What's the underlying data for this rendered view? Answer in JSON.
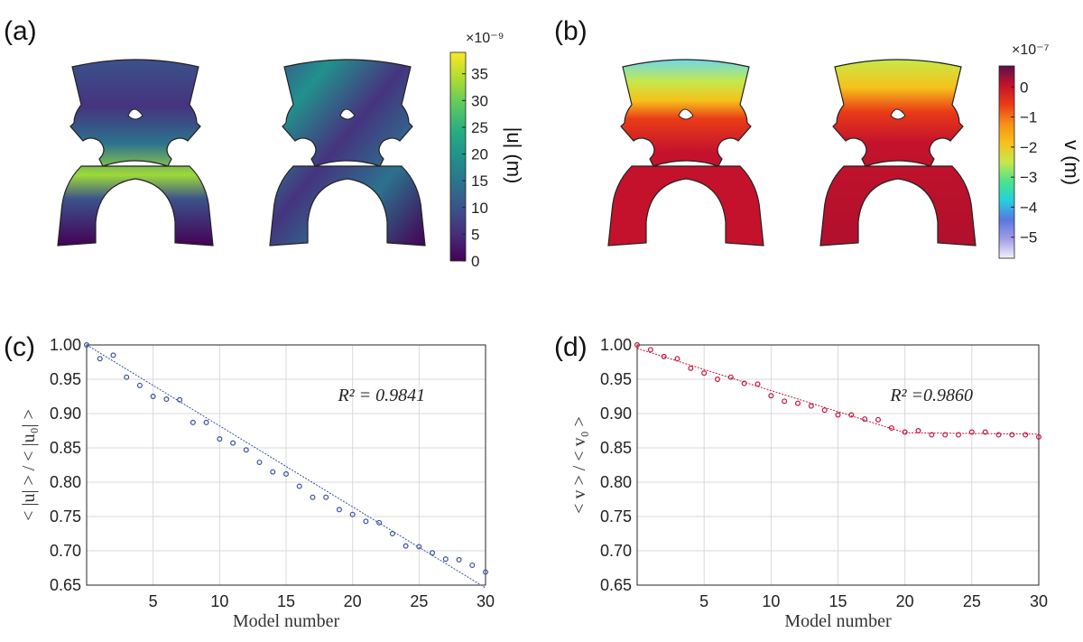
{
  "panels": {
    "a": {
      "label": "(a)",
      "colorbar": {
        "title": "|u| (m)",
        "exponent": "×10⁻⁹",
        "ticks": [
          "0",
          "5",
          "10",
          "15",
          "20",
          "25",
          "30",
          "35"
        ],
        "min": 0,
        "max": 39,
        "colormap": [
          "#440154",
          "#472d7b",
          "#3b528b",
          "#2c728e",
          "#21918c",
          "#28ae80",
          "#5ec962",
          "#addc30",
          "#fde725"
        ]
      }
    },
    "b": {
      "label": "(b)",
      "colorbar": {
        "title": "v (m)",
        "exponent": "×10⁻⁷",
        "ticks": [
          "0",
          "−1",
          "−2",
          "−3",
          "−4",
          "−5"
        ],
        "min": -5.7,
        "max": 0.7,
        "colormap": [
          "#f4f0fb",
          "#a29de6",
          "#5a77e0",
          "#23d0de",
          "#4ee28a",
          "#c6e84a",
          "#f6c21a",
          "#f78e18",
          "#ea3b17",
          "#c4122c",
          "#5c0f4d"
        ]
      }
    },
    "c": {
      "label": "(c)"
    },
    "d": {
      "label": "(d)"
    }
  },
  "chart_data": [
    {
      "id": "c",
      "type": "scatter",
      "title": "",
      "xlabel": "Model number",
      "ylabel": "< |u| > / < |u₀| >",
      "xlim": [
        0,
        30
      ],
      "ylim": [
        0.65,
        1.0
      ],
      "xticks": [
        5,
        10,
        15,
        20,
        25,
        30
      ],
      "yticks": [
        0.65,
        0.7,
        0.75,
        0.8,
        0.85,
        0.9,
        0.95,
        1.0
      ],
      "grid": true,
      "color": "#3a4f9e",
      "annotation": "R² = 0.9841",
      "x": [
        0,
        1,
        2,
        3,
        4,
        5,
        6,
        7,
        8,
        9,
        10,
        11,
        12,
        13,
        14,
        15,
        16,
        17,
        18,
        19,
        20,
        21,
        22,
        23,
        24,
        25,
        26,
        27,
        28,
        29,
        30
      ],
      "y": [
        1.0,
        0.98,
        0.985,
        0.953,
        0.941,
        0.925,
        0.921,
        0.92,
        0.887,
        0.887,
        0.863,
        0.857,
        0.847,
        0.829,
        0.815,
        0.812,
        0.794,
        0.778,
        0.778,
        0.76,
        0.753,
        0.743,
        0.741,
        0.725,
        0.707,
        0.706,
        0.697,
        0.688,
        0.687,
        0.679,
        0.669
      ],
      "fit": {
        "x": [
          0,
          30
        ],
        "y": [
          1.0,
          0.646
        ]
      }
    },
    {
      "id": "d",
      "type": "scatter",
      "title": "",
      "xlabel": "Model number",
      "ylabel": "< v > / < v₀ >",
      "xlim": [
        0,
        30
      ],
      "ylim": [
        0.65,
        1.0
      ],
      "xticks": [
        5,
        10,
        15,
        20,
        25,
        30
      ],
      "yticks": [
        0.65,
        0.7,
        0.75,
        0.8,
        0.85,
        0.9,
        0.95,
        1.0
      ],
      "grid": true,
      "color": "#c2133a",
      "annotation": "R² =0.9860",
      "x": [
        0,
        1,
        2,
        3,
        4,
        5,
        6,
        7,
        8,
        9,
        10,
        11,
        12,
        13,
        14,
        15,
        16,
        17,
        18,
        19,
        20,
        21,
        22,
        23,
        24,
        25,
        26,
        27,
        28,
        29,
        30
      ],
      "y": [
        1.0,
        0.993,
        0.983,
        0.98,
        0.966,
        0.959,
        0.95,
        0.953,
        0.944,
        0.943,
        0.926,
        0.918,
        0.915,
        0.911,
        0.905,
        0.898,
        0.898,
        0.892,
        0.891,
        0.879,
        0.873,
        0.875,
        0.869,
        0.869,
        0.869,
        0.873,
        0.873,
        0.869,
        0.869,
        0.869,
        0.866
      ],
      "fit": {
        "x": [
          0,
          20,
          30
        ],
        "y": [
          0.995,
          0.872,
          0.87
        ]
      }
    }
  ]
}
